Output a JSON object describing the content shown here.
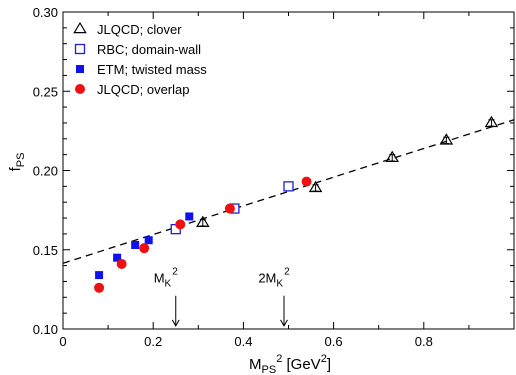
{
  "chart_data": {
    "type": "scatter",
    "title": "",
    "xlabel": "M_PS^2 [GeV^2]",
    "ylabel": "f_PS",
    "xlim": [
      0,
      1.0
    ],
    "ylim": [
      0.1,
      0.3
    ],
    "x_ticks": [
      {
        "value": 0,
        "label": "0"
      },
      {
        "value": 0.2,
        "label": "0.2"
      },
      {
        "value": 0.4,
        "label": "0.4"
      },
      {
        "value": 0.6,
        "label": "0.6"
      },
      {
        "value": 0.8,
        "label": "0.8"
      }
    ],
    "y_ticks": [
      {
        "value": 0.1,
        "label": "0.10"
      },
      {
        "value": 0.15,
        "label": "0.15"
      },
      {
        "value": 0.2,
        "label": "0.20"
      },
      {
        "value": 0.25,
        "label": "0.25"
      },
      {
        "value": 0.3,
        "label": "0.30"
      }
    ],
    "grid": false,
    "legend_position": "top-left",
    "series": [
      {
        "name": "JLQCD;  clover",
        "marker": "open-triangle",
        "color": "#000000",
        "points": [
          {
            "x": 0.31,
            "y": 0.167,
            "err": 0.002
          },
          {
            "x": 0.56,
            "y": 0.189,
            "err": 0.002
          },
          {
            "x": 0.73,
            "y": 0.208,
            "err": 0.002
          },
          {
            "x": 0.85,
            "y": 0.219,
            "err": 0.002
          },
          {
            "x": 0.95,
            "y": 0.23,
            "err": 0.002
          }
        ]
      },
      {
        "name": "RBC;  domain-wall",
        "marker": "open-square",
        "color": "#1f1fd6",
        "points": [
          {
            "x": 0.25,
            "y": 0.163,
            "err": 0.002
          },
          {
            "x": 0.38,
            "y": 0.176,
            "err": 0.002
          },
          {
            "x": 0.5,
            "y": 0.19,
            "err": 0.002
          }
        ]
      },
      {
        "name": "ETM;  twisted mass",
        "marker": "filled-square",
        "color": "#1010ee",
        "points": [
          {
            "x": 0.08,
            "y": 0.134,
            "err": 0.002
          },
          {
            "x": 0.12,
            "y": 0.145,
            "err": 0.002
          },
          {
            "x": 0.16,
            "y": 0.153,
            "err": 0.002
          },
          {
            "x": 0.19,
            "y": 0.156,
            "err": 0.002
          },
          {
            "x": 0.28,
            "y": 0.171,
            "err": 0.002
          }
        ]
      },
      {
        "name": "JLQCD;  overlap",
        "marker": "filled-circle",
        "color": "#ee1111",
        "points": [
          {
            "x": 0.08,
            "y": 0.126,
            "err": 0.002
          },
          {
            "x": 0.13,
            "y": 0.141,
            "err": 0.002
          },
          {
            "x": 0.18,
            "y": 0.151,
            "err": 0.002
          },
          {
            "x": 0.26,
            "y": 0.166,
            "err": 0.002
          },
          {
            "x": 0.37,
            "y": 0.176,
            "err": 0.002
          },
          {
            "x": 0.54,
            "y": 0.193,
            "err": 0.002
          }
        ]
      }
    ],
    "fit_line": {
      "style": "dashed",
      "color": "#000000",
      "x": [
        0,
        1.0
      ],
      "y": [
        0.1415,
        0.232
      ]
    },
    "annotations": [
      {
        "label": "M_K^2",
        "x": 0.25,
        "arrow_from_y": 0.121,
        "arrow_to_y": 0.102
      },
      {
        "label": "2M_K^2",
        "x": 0.49,
        "arrow_from_y": 0.121,
        "arrow_to_y": 0.102
      }
    ]
  }
}
